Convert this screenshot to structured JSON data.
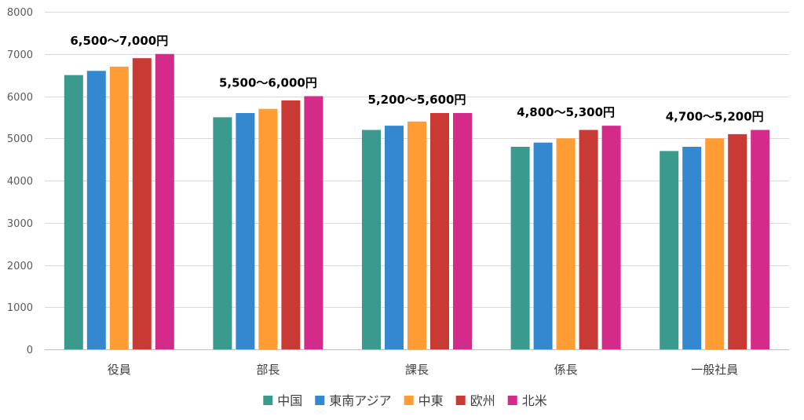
{
  "chart_data": {
    "type": "bar",
    "title": "",
    "xlabel": "",
    "ylabel": "",
    "ylim": [
      0,
      8000
    ],
    "yticks": [
      0,
      1000,
      2000,
      3000,
      4000,
      5000,
      6000,
      7000,
      8000
    ],
    "grid": true,
    "legend_position": "bottom",
    "categories": [
      "役員",
      "部長",
      "課長",
      "係長",
      "一般社員"
    ],
    "range_labels": [
      "6,500～7,000円",
      "5,500～6,000円",
      "5,200～5,600円",
      "4,800～5,300円",
      "4,700～5,200円"
    ],
    "series": [
      {
        "name": "中国",
        "color": "#3a9a8e",
        "values": [
          6500,
          5500,
          5200,
          4800,
          4700
        ]
      },
      {
        "name": "東南アジア",
        "color": "#3388d0",
        "values": [
          6600,
          5600,
          5300,
          4900,
          4800
        ]
      },
      {
        "name": "中東",
        "color": "#ff9c33",
        "values": [
          6700,
          5700,
          5400,
          5000,
          5000
        ]
      },
      {
        "name": "欧州",
        "color": "#c93a35",
        "values": [
          6900,
          5900,
          5600,
          5200,
          5100
        ]
      },
      {
        "name": "北米",
        "color": "#d42a8a",
        "values": [
          7000,
          6000,
          5600,
          5300,
          5200
        ]
      }
    ]
  }
}
